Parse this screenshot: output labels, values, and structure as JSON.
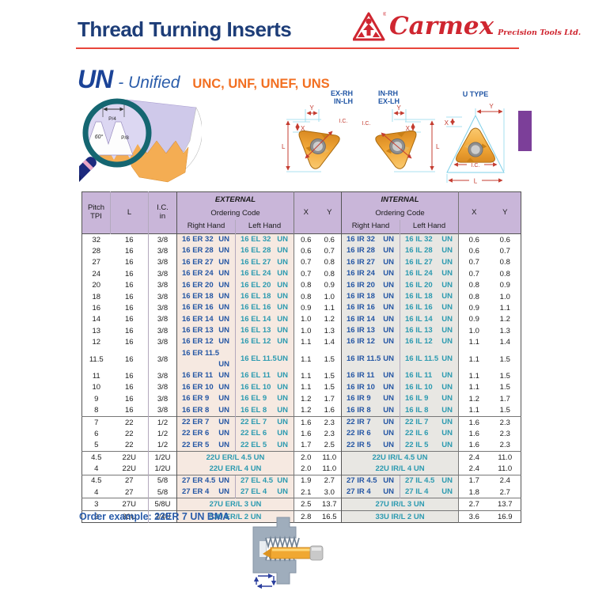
{
  "page": {
    "title": "Thread Turning Inserts",
    "brand": {
      "name": "Carmex",
      "tagline": "Precision Tools Ltd.",
      "registered": "®"
    },
    "section": {
      "code": "UN",
      "name": "- Unified",
      "subtypes": "UNC, UNF, UNEF, UNS"
    },
    "order_example": "Order example: 22ER 7 UN BMA"
  },
  "diagrams": {
    "profile": {
      "p": "P",
      "p4": "P/4",
      "p8": "P/8",
      "angle": "60°"
    },
    "insert1": {
      "line1": "EX-RH",
      "line2": "IN-LH"
    },
    "insert2": {
      "line1": "IN-RH",
      "line2": "EX-LH"
    },
    "insert3": {
      "title": "U TYPE"
    },
    "dims": {
      "x": "X",
      "y": "Y",
      "l": "L",
      "ic": "I.C."
    }
  },
  "table": {
    "un_suffix": "UN",
    "headers": {
      "pitch": "Pitch",
      "tpi": "TPI",
      "l": "L",
      "ic": "I.C.",
      "in_unit": "in",
      "external": "EXTERNAL",
      "internal": "INTERNAL",
      "ordering_code": "Ordering Code",
      "right_hand": "Right Hand",
      "left_hand": "Left Hand",
      "x": "X",
      "y": "Y"
    },
    "rows": [
      {
        "pitch": "32",
        "l": "16",
        "ic": "3/8",
        "er": "16 ER 32",
        "el": "16 EL 32",
        "ex": "0.6",
        "ey": "0.6",
        "ir": "16 IR 32",
        "il": "16 IL 32",
        "ix": "0.6",
        "iy": "0.6"
      },
      {
        "pitch": "28",
        "l": "16",
        "ic": "3/8",
        "er": "16 ER 28",
        "el": "16 EL 28",
        "ex": "0.6",
        "ey": "0.7",
        "ir": "16 IR 28",
        "il": "16 IL 28",
        "ix": "0.6",
        "iy": "0.7"
      },
      {
        "pitch": "27",
        "l": "16",
        "ic": "3/8",
        "er": "16 ER 27",
        "el": "16 EL 27",
        "ex": "0.7",
        "ey": "0.8",
        "ir": "16 IR 27",
        "il": "16 IL 27",
        "ix": "0.7",
        "iy": "0.8"
      },
      {
        "pitch": "24",
        "l": "16",
        "ic": "3/8",
        "er": "16 ER 24",
        "el": "16 EL 24",
        "ex": "0.7",
        "ey": "0.8",
        "ir": "16 IR 24",
        "il": "16 IL 24",
        "ix": "0.7",
        "iy": "0.8"
      },
      {
        "pitch": "20",
        "l": "16",
        "ic": "3/8",
        "er": "16 ER 20",
        "el": "16 EL 20",
        "ex": "0.8",
        "ey": "0.9",
        "ir": "16 IR 20",
        "il": "16 IL 20",
        "ix": "0.8",
        "iy": "0.9"
      },
      {
        "pitch": "18",
        "l": "16",
        "ic": "3/8",
        "er": "16 ER 18",
        "el": "16 EL 18",
        "ex": "0.8",
        "ey": "1.0",
        "ir": "16 IR 18",
        "il": "16 IL 18",
        "ix": "0.8",
        "iy": "1.0"
      },
      {
        "pitch": "16",
        "l": "16",
        "ic": "3/8",
        "er": "16 ER 16",
        "el": "16 EL 16",
        "ex": "0.9",
        "ey": "1.1",
        "ir": "16 IR 16",
        "il": "16 IL 16",
        "ix": "0.9",
        "iy": "1.1"
      },
      {
        "pitch": "14",
        "l": "16",
        "ic": "3/8",
        "er": "16 ER 14",
        "el": "16 EL 14",
        "ex": "1.0",
        "ey": "1.2",
        "ir": "16 IR 14",
        "il": "16 IL 14",
        "ix": "0.9",
        "iy": "1.2"
      },
      {
        "pitch": "13",
        "l": "16",
        "ic": "3/8",
        "er": "16 ER 13",
        "el": "16 EL 13",
        "ex": "1.0",
        "ey": "1.3",
        "ir": "16 IR 13",
        "il": "16 IL 13",
        "ix": "1.0",
        "iy": "1.3"
      },
      {
        "pitch": "12",
        "l": "16",
        "ic": "3/8",
        "er": "16 ER 12",
        "el": "16 EL 12",
        "ex": "1.1",
        "ey": "1.4",
        "ir": "16 IR 12",
        "il": "16 IL 12",
        "ix": "1.1",
        "iy": "1.4"
      },
      {
        "pitch": "11.5",
        "l": "16",
        "ic": "3/8",
        "er": "16 ER 11.5",
        "el": "16 EL 11.5",
        "ex": "1.1",
        "ey": "1.5",
        "ir": "16 IR 11.5",
        "il": "16 IL 11.5",
        "ix": "1.1",
        "iy": "1.5"
      },
      {
        "pitch": "11",
        "l": "16",
        "ic": "3/8",
        "er": "16 ER 11",
        "el": "16 EL 11",
        "ex": "1.1",
        "ey": "1.5",
        "ir": "16 IR 11",
        "il": "16 IL 11",
        "ix": "1.1",
        "iy": "1.5"
      },
      {
        "pitch": "10",
        "l": "16",
        "ic": "3/8",
        "er": "16 ER 10",
        "el": "16 EL 10",
        "ex": "1.1",
        "ey": "1.5",
        "ir": "16 IR 10",
        "il": "16 IL 10",
        "ix": "1.1",
        "iy": "1.5"
      },
      {
        "pitch": "9",
        "l": "16",
        "ic": "3/8",
        "er": "16 ER  9",
        "el": "16 EL  9",
        "ex": "1.2",
        "ey": "1.7",
        "ir": "16 IR  9",
        "il": "16 IL  9",
        "ix": "1.2",
        "iy": "1.7"
      },
      {
        "pitch": "8",
        "l": "16",
        "ic": "3/8",
        "er": "16 ER  8",
        "el": "16 EL  8",
        "ex": "1.2",
        "ey": "1.6",
        "ir": "16 IR  8",
        "il": "16 IL  8",
        "ix": "1.1",
        "iy": "1.5"
      },
      {
        "pitch": "7",
        "l": "22",
        "ic": "1/2",
        "er": "22 ER  7",
        "el": "22 EL  7",
        "ex": "1.6",
        "ey": "2.3",
        "ir": "22 IR  7",
        "il": "22 IL  7",
        "ix": "1.6",
        "iy": "2.3"
      },
      {
        "pitch": "6",
        "l": "22",
        "ic": "1/2",
        "er": "22 ER  6",
        "el": "22 EL  6",
        "ex": "1.6",
        "ey": "2.3",
        "ir": "22 IR  6",
        "il": "22 IL  6",
        "ix": "1.6",
        "iy": "2.3"
      },
      {
        "pitch": "5",
        "l": "22",
        "ic": "1/2",
        "er": "22 ER  5",
        "el": "22 EL  5",
        "ex": "1.7",
        "ey": "2.5",
        "ir": "22 IR  5",
        "il": "22 IL  5",
        "ix": "1.6",
        "iy": "2.3"
      },
      {
        "pitch": "4.5",
        "l": "22U",
        "ic": "1/2U",
        "em": "22U ER/L 4.5 UN",
        "ex": "2.0",
        "ey": "11.0",
        "im": "22U IR/L 4.5 UN",
        "ix": "2.4",
        "iy": "11.0"
      },
      {
        "pitch": "4",
        "l": "22U",
        "ic": "1/2U",
        "em": "22U ER/L 4  UN",
        "ex": "2.0",
        "ey": "11.0",
        "im": "22U IR/L 4  UN",
        "ix": "2.4",
        "iy": "11.0"
      },
      {
        "pitch": "4.5",
        "l": "27",
        "ic": "5/8",
        "er": "27 ER 4.5",
        "el": "27 EL 4.5",
        "ex": "1.9",
        "ey": "2.7",
        "ir": "27 IR 4.5",
        "il": "27 IL 4.5",
        "ix": "1.7",
        "iy": "2.4"
      },
      {
        "pitch": "4",
        "l": "27",
        "ic": "5/8",
        "er": "27 ER 4",
        "el": "27 EL 4",
        "ex": "2.1",
        "ey": "3.0",
        "ir": "27 IR 4",
        "il": "27 IL 4",
        "ix": "1.8",
        "iy": "2.7"
      },
      {
        "pitch": "3",
        "l": "27U",
        "ic": "5/8U",
        "em": "27U ER/L 3  UN",
        "ex": "2.5",
        "ey": "13.7",
        "im": "27U IR/L 3  UN",
        "ix": "2.7",
        "iy": "13.7"
      },
      {
        "pitch": "2",
        "l": "33U",
        "ic": "3/4U",
        "em": "33U ER/L 2  UN",
        "ex": "2.8",
        "ey": "16.5",
        "im": "33U IR/L 2  UN",
        "ix": "3.6",
        "iy": "16.9"
      }
    ]
  },
  "colors": {
    "title_blue": "#1d3d78",
    "brand_red": "#cf2630",
    "rule_red": "#e8453a",
    "un_blue": "#1b4397",
    "accent_orange": "#f26f21",
    "code_blue": "#2456a4",
    "code_teal": "#2b9ab0",
    "header_purple": "#c9b6d9",
    "pitch_cream": "#fdeecd",
    "external_bg": "#f6e9e1",
    "internal_bg": "#e8e7e3",
    "tab_purple": "#7c3f99",
    "dim_red": "#c43c30",
    "extension_cyan": "#8fd8ec"
  }
}
